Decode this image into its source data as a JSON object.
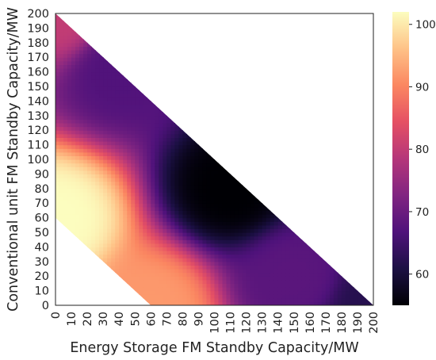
{
  "chart_data": {
    "type": "heatmap",
    "title": "",
    "xlabel": "Energy Storage FM Standby Capacity/MW",
    "ylabel": "Conventional unit FM Standby Capacity/MW",
    "xlim": [
      0,
      200
    ],
    "ylim": [
      0,
      200
    ],
    "x_ticks": [
      "0",
      "10",
      "20",
      "30",
      "40",
      "50",
      "60",
      "70",
      "80",
      "90",
      "100",
      "110",
      "120",
      "130",
      "140",
      "150",
      "160",
      "170",
      "180",
      "190",
      "200"
    ],
    "y_ticks": [
      "0",
      "10",
      "20",
      "30",
      "40",
      "50",
      "60",
      "70",
      "80",
      "90",
      "100",
      "110",
      "120",
      "130",
      "140",
      "150",
      "160",
      "170",
      "180",
      "190",
      "200"
    ],
    "feasible_region": {
      "constraint_upper": "x + y <= 200",
      "constraint_lower": "x + y >= 60"
    },
    "colorbar": {
      "colormap": "magma",
      "range": [
        55,
        102
      ],
      "ticks": [
        "60",
        "70",
        "80",
        "90",
        "100"
      ]
    },
    "surface_samples": [
      {
        "x": 0,
        "y": 60,
        "value": 102
      },
      {
        "x": 0,
        "y": 200,
        "value": 80
      },
      {
        "x": 60,
        "y": 0,
        "value": 92
      },
      {
        "x": 40,
        "y": 160,
        "value": 67
      },
      {
        "x": 110,
        "y": 80,
        "value": 55
      },
      {
        "x": 150,
        "y": 20,
        "value": 68
      },
      {
        "x": 200,
        "y": 0,
        "value": 62
      }
    ]
  }
}
